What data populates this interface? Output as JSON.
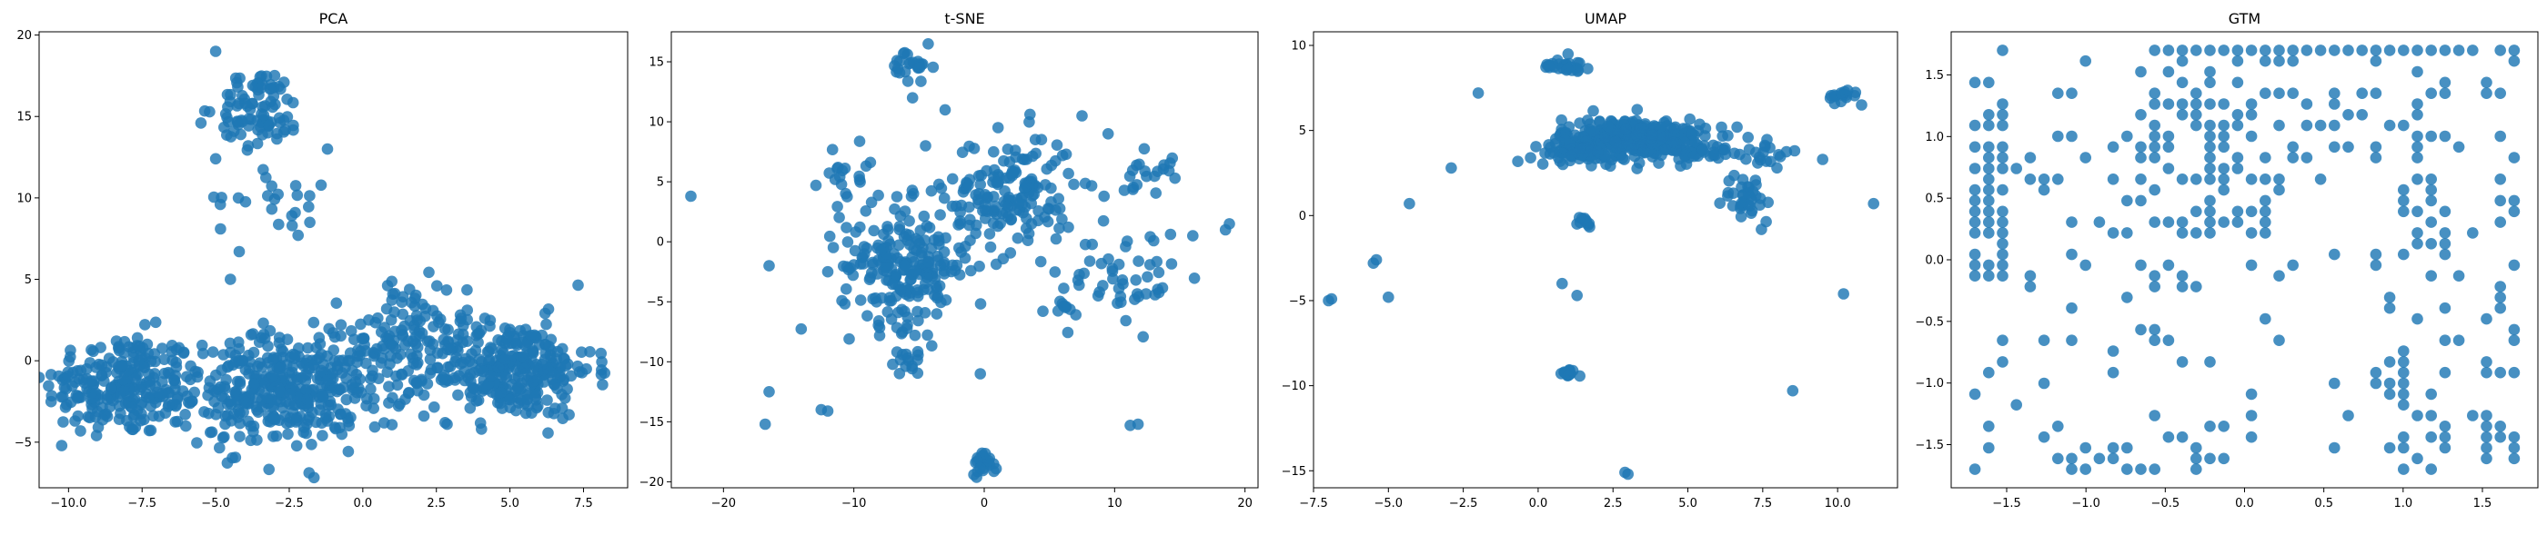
{
  "point_color": "#1f77b4",
  "chart_data": [
    {
      "type": "scatter",
      "title": "PCA",
      "xlabel": "",
      "ylabel": "",
      "xlim": [
        -11.0,
        9.0
      ],
      "ylim": [
        -7.8,
        20.2
      ],
      "xticks": [
        -10.0,
        -7.5,
        -5.0,
        -2.5,
        0.0,
        2.5,
        5.0,
        7.5
      ],
      "xtick_labels": [
        "−10.0",
        "−7.5",
        "−5.0",
        "−2.5",
        "0.0",
        "2.5",
        "5.0",
        "7.5"
      ],
      "yticks": [
        -5,
        0,
        5,
        10,
        15,
        20
      ],
      "ytick_labels": [
        "−5",
        "0",
        "5",
        "10",
        "15",
        "20"
      ],
      "grid": false,
      "clusters": [
        {
          "cx": -8.2,
          "cy": -1.5,
          "sx": 1.3,
          "sy": 1.6,
          "n": 240
        },
        {
          "cx": -3.2,
          "cy": -2.0,
          "sx": 1.5,
          "sy": 1.7,
          "n": 280
        },
        {
          "cx": -1.0,
          "cy": -1.0,
          "sx": 1.3,
          "sy": 1.6,
          "n": 140
        },
        {
          "cx": 1.5,
          "cy": 1.5,
          "sx": 1.0,
          "sy": 1.8,
          "n": 90
        },
        {
          "cx": 5.0,
          "cy": -0.5,
          "sx": 1.4,
          "sy": 1.5,
          "n": 320
        },
        {
          "cx": -3.5,
          "cy": 15.5,
          "sx": 0.7,
          "sy": 1.2,
          "n": 90
        },
        {
          "cx": -2.8,
          "cy": 10.0,
          "sx": 1.0,
          "sy": 0.8,
          "n": 22
        }
      ],
      "scattered_points": [
        [
          -5,
          19
        ],
        [
          -4.2,
          6.7
        ],
        [
          -4.5,
          5.0
        ],
        [
          -2.2,
          7.7
        ],
        [
          -1.2,
          13.0
        ],
        [
          -1.8,
          8.5
        ],
        [
          -5.5,
          14.6
        ],
        [
          -5.0,
          12.4
        ]
      ]
    },
    {
      "type": "scatter",
      "title": "t-SNE",
      "xlabel": "",
      "ylabel": "",
      "xlim": [
        -24.0,
        21.0
      ],
      "ylim": [
        -20.5,
        17.5
      ],
      "xticks": [
        -20,
        -10,
        0,
        10,
        20
      ],
      "xtick_labels": [
        "−20",
        "−10",
        "0",
        "10",
        "20"
      ],
      "yticks": [
        -20,
        -15,
        -10,
        -5,
        0,
        5,
        10,
        15
      ],
      "ytick_labels": [
        "−20",
        "−15",
        "−10",
        "−5",
        "0",
        "5",
        "10",
        "15"
      ],
      "grid": false,
      "clusters": [
        {
          "cx": -6.0,
          "cy": -2.0,
          "sx": 2.5,
          "sy": 2.5,
          "n": 220
        },
        {
          "cx": 2.0,
          "cy": 4.0,
          "sx": 2.5,
          "sy": 2.5,
          "n": 160
        },
        {
          "cx": -5.5,
          "cy": 14.5,
          "sx": 0.8,
          "sy": 0.8,
          "n": 25
        },
        {
          "cx": 0.0,
          "cy": -18.3,
          "sx": 0.5,
          "sy": 0.5,
          "n": 25
        },
        {
          "cx": 11.0,
          "cy": -3.0,
          "sx": 2.0,
          "sy": 2.0,
          "n": 45
        },
        {
          "cx": -6.0,
          "cy": -10.0,
          "sx": 0.7,
          "sy": 0.5,
          "n": 15
        },
        {
          "cx": 12.5,
          "cy": 6.0,
          "sx": 1.0,
          "sy": 1.0,
          "n": 20
        },
        {
          "cx": -10.5,
          "cy": 5.5,
          "sx": 1.5,
          "sy": 1.2,
          "n": 20
        },
        {
          "cx": 6.0,
          "cy": -5.5,
          "sx": 0.5,
          "sy": 1.2,
          "n": 12
        }
      ],
      "scattered_points": [
        [
          -22.5,
          3.8
        ],
        [
          -16.5,
          -2.0
        ],
        [
          -16.5,
          -12.5
        ],
        [
          -16.8,
          -15.2
        ],
        [
          -12.5,
          -14.0
        ],
        [
          -12.0,
          -14.1
        ],
        [
          11.2,
          -15.3
        ],
        [
          11.8,
          -15.2
        ],
        [
          -5.5,
          12.0
        ],
        [
          -3.0,
          11.0
        ],
        [
          -4.5,
          8.0
        ],
        [
          -0.3,
          -11.0
        ],
        [
          16.0,
          0.5
        ],
        [
          18.8,
          1.5
        ],
        [
          18.5,
          1.0
        ],
        [
          9.5,
          9.0
        ],
        [
          7.5,
          10.5
        ],
        [
          -12.0,
          -2.5
        ]
      ]
    },
    {
      "type": "scatter",
      "title": "UMAP",
      "xlabel": "",
      "ylabel": "",
      "xlim": [
        -7.5,
        12.0
      ],
      "ylim": [
        -16.0,
        10.8
      ],
      "xticks": [
        -7.5,
        -5.0,
        -2.5,
        0.0,
        2.5,
        5.0,
        7.5,
        10.0
      ],
      "xtick_labels": [
        "−7.5",
        "−5.0",
        "−2.5",
        "0.0",
        "2.5",
        "5.0",
        "7.5",
        "10.0"
      ],
      "yticks": [
        -15,
        -10,
        -5,
        0,
        5,
        10
      ],
      "ytick_labels": [
        "−15",
        "−10",
        "−5",
        "0",
        "5",
        "10"
      ],
      "grid": false,
      "clusters": [
        {
          "cx": 3.2,
          "cy": 4.5,
          "sx": 1.2,
          "sy": 0.6,
          "n": 360
        },
        {
          "cx": 1.2,
          "cy": 3.7,
          "sx": 0.7,
          "sy": 0.3,
          "n": 60
        },
        {
          "cx": 0.9,
          "cy": 8.8,
          "sx": 0.4,
          "sy": 0.15,
          "n": 25
        },
        {
          "cx": 7.0,
          "cy": 1.0,
          "sx": 0.4,
          "sy": 0.7,
          "n": 35
        },
        {
          "cx": 7.5,
          "cy": 3.8,
          "sx": 0.5,
          "sy": 0.5,
          "n": 20
        },
        {
          "cx": 10.2,
          "cy": 7.0,
          "sx": 0.25,
          "sy": 0.2,
          "n": 15
        },
        {
          "cx": 1.0,
          "cy": -9.3,
          "sx": 0.15,
          "sy": 0.15,
          "n": 15
        },
        {
          "cx": 1.5,
          "cy": -0.3,
          "sx": 0.2,
          "sy": 0.2,
          "n": 12
        },
        {
          "cx": 5.8,
          "cy": 3.7,
          "sx": 0.5,
          "sy": 0.2,
          "n": 20
        }
      ],
      "scattered_points": [
        [
          -7.0,
          -5.0
        ],
        [
          -6.9,
          -4.9
        ],
        [
          -5.5,
          -2.8
        ],
        [
          -5.4,
          -2.6
        ],
        [
          -5.0,
          -4.8
        ],
        [
          -4.3,
          0.7
        ],
        [
          -2.9,
          2.8
        ],
        [
          -2.0,
          7.2
        ],
        [
          0.8,
          -4.0
        ],
        [
          1.3,
          -4.7
        ],
        [
          2.9,
          -15.1
        ],
        [
          3.0,
          -15.2
        ],
        [
          8.5,
          -10.3
        ],
        [
          10.2,
          -4.6
        ],
        [
          11.2,
          0.7
        ],
        [
          9.5,
          3.3
        ],
        [
          1.0,
          9.5
        ],
        [
          10.8,
          6.5
        ]
      ]
    },
    {
      "type": "scatter",
      "title": "GTM",
      "xlabel": "",
      "ylabel": "",
      "xlim": [
        -1.85,
        1.85
      ],
      "ylim": [
        -1.85,
        1.85
      ],
      "xticks": [
        -1.5,
        -1.0,
        -0.5,
        0.0,
        0.5,
        1.0,
        1.5
      ],
      "xtick_labels": [
        "−1.5",
        "−1.0",
        "−0.5",
        "0.0",
        "0.5",
        "1.0",
        "1.5"
      ],
      "yticks": [
        -1.5,
        -1.0,
        -0.5,
        0.0,
        0.5,
        1.0,
        1.5
      ],
      "ytick_labels": [
        "−1.5",
        "−1.0",
        "−0.5",
        "0.0",
        "0.5",
        "1.0",
        "1.5"
      ],
      "grid": false,
      "grid_nodes_per_axis": 40,
      "dense_regions": [
        {
          "x": [
            -1.7,
            -1.5
          ],
          "y": [
            -0.2,
            1.0
          ],
          "fill": 0.75
        },
        {
          "x": [
            -0.7,
            0.3
          ],
          "y": [
            0.5,
            1.7
          ],
          "fill": 0.45
        },
        {
          "x": [
            -0.5,
            1.7
          ],
          "y": [
            1.65,
            1.72
          ],
          "fill": 0.9
        },
        {
          "x": [
            0.8,
            1.3
          ],
          "y": [
            -1.7,
            -0.8
          ],
          "fill": 0.45
        },
        {
          "x": [
            1.0,
            1.3
          ],
          "y": [
            0.0,
            0.7
          ],
          "fill": 0.5
        },
        {
          "x": [
            -1.0,
            0.3
          ],
          "y": [
            0.2,
            0.7
          ],
          "fill": 0.45
        },
        {
          "x": [
            -0.2,
            1.2
          ],
          "y": [
            0.8,
            1.5
          ],
          "fill": 0.35
        },
        {
          "x": [
            1.5,
            1.7
          ],
          "y": [
            -1.7,
            1.7
          ],
          "fill": 0.25
        },
        {
          "x": [
            -1.2,
            0.0
          ],
          "y": [
            -1.7,
            -1.5
          ],
          "fill": 0.5
        }
      ],
      "sparse_fill": 0.1
    }
  ]
}
